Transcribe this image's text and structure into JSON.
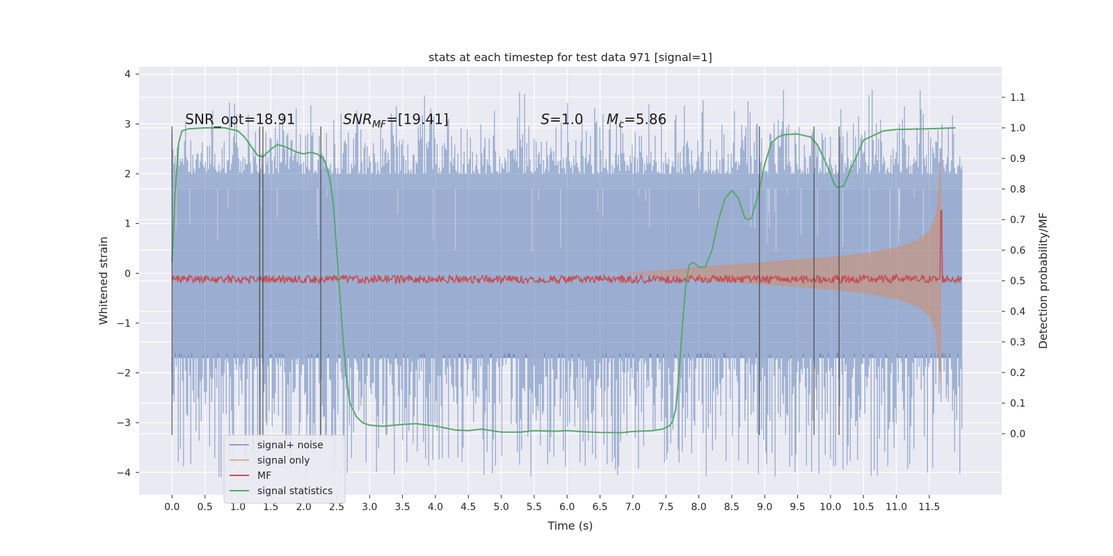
{
  "chart_data": {
    "type": "line",
    "title": "stats at each timestep for test data 971 [signal=1]",
    "xlabel": "Time (s)",
    "ylabel": "Whitened strain",
    "ylabel_right": "Detection probability/MF",
    "xlim": [
      -0.5,
      12.6
    ],
    "ylim": [
      -4.45,
      4.15
    ],
    "ylim_right": [
      -0.2,
      1.2
    ],
    "x_ticks": [
      0.0,
      0.5,
      1.0,
      1.5,
      2.0,
      2.5,
      3.0,
      3.5,
      4.0,
      4.5,
      5.0,
      5.5,
      6.0,
      6.5,
      7.0,
      7.5,
      8.0,
      8.5,
      9.0,
      9.5,
      10.0,
      10.5,
      11.0,
      11.5
    ],
    "x_tick_labels": [
      "0.0",
      "0.5",
      "1.0",
      "1.5",
      "2.0",
      "2.5",
      "3.0",
      "3.5",
      "4.0",
      "4.5",
      "5.0",
      "5.5",
      "6.0",
      "6.5",
      "7.0",
      "7.5",
      "8.0",
      "8.5",
      "9.0",
      "9.5",
      "10.0",
      "10.5",
      "11.0",
      "11.5"
    ],
    "y_ticks": [
      -4,
      -3,
      -2,
      -1,
      0,
      1,
      2,
      3,
      4
    ],
    "y_tick_labels": [
      "−4",
      "−3",
      "−2",
      "−1",
      "0",
      "1",
      "2",
      "3",
      "4"
    ],
    "y_right_ticks": [
      0.0,
      0.1,
      0.2,
      0.3,
      0.4,
      0.5,
      0.6,
      0.7,
      0.8,
      0.9,
      1.0,
      1.1
    ],
    "y_right_tick_labels": [
      "0.0",
      "0.1",
      "0.2",
      "0.3",
      "0.4",
      "0.5",
      "0.6",
      "0.7",
      "0.8",
      "0.9",
      "1.0",
      "1.1"
    ],
    "grid": true,
    "legend_position": "lower-left",
    "annotations": [
      {
        "x": 0.2,
        "y": 3.0,
        "parts": [
          {
            "t": "SNR_opt=18.91",
            "s": "n"
          }
        ]
      },
      {
        "x": 2.6,
        "y": 3.0,
        "parts": [
          {
            "t": "SNR",
            "s": "i"
          },
          {
            "t": "MF",
            "s": "isub"
          },
          {
            "t": "=[19.41]",
            "s": "n"
          }
        ]
      },
      {
        "x": 5.6,
        "y": 3.0,
        "parts": [
          {
            "t": "S",
            "s": "i"
          },
          {
            "t": "=1.0",
            "s": "n"
          }
        ]
      },
      {
        "x": 6.6,
        "y": 3.0,
        "parts": [
          {
            "t": "M",
            "s": "i"
          },
          {
            "t": "c",
            "s": "isub"
          },
          {
            "t": "=5.86",
            "s": "n"
          }
        ]
      }
    ],
    "vertical_lines": [
      {
        "x": 0.0,
        "ymin": -3.25,
        "ymax": 2.95
      },
      {
        "x": 1.33,
        "ymin": -3.25,
        "ymax": 2.95
      },
      {
        "x": 1.38,
        "ymin": -3.25,
        "ymax": 2.95
      },
      {
        "x": 2.26,
        "ymin": -3.25,
        "ymax": 2.95
      },
      {
        "x": 8.92,
        "ymin": -3.25,
        "ymax": 2.95
      },
      {
        "x": 9.75,
        "ymin": -3.25,
        "ymax": 2.95
      },
      {
        "x": 10.13,
        "ymin": -3.25,
        "ymax": 2.95
      }
    ],
    "series": [
      {
        "name": "signal+ noise",
        "color": "#4c72b0",
        "axis": "left",
        "kind": "noise",
        "x_range": [
          0.0,
          12.0
        ],
        "core_amplitude": 1.7,
        "peak_range": [
          2.0,
          3.8
        ],
        "trough_range": [
          -4.1,
          -1.6
        ]
      },
      {
        "name": "signal only",
        "color": "#dd8452",
        "axis": "left",
        "kind": "chirp",
        "x": [
          6.8,
          7.5,
          8.0,
          8.5,
          9.0,
          9.5,
          10.0,
          10.5,
          11.0,
          11.3,
          11.5,
          11.6,
          11.65,
          11.68
        ],
        "amplitude": [
          0.0,
          0.07,
          0.13,
          0.18,
          0.23,
          0.28,
          0.33,
          0.4,
          0.52,
          0.66,
          0.85,
          1.2,
          1.9,
          2.5
        ]
      },
      {
        "name": "MF",
        "color": "#c44e52",
        "axis": "right",
        "kind": "line",
        "baseline": 0.505,
        "x_range": [
          0.0,
          12.0
        ],
        "spikes": [
          {
            "x": 11.68,
            "y": 0.73
          },
          {
            "x": 11.0,
            "y": 0.52
          }
        ]
      },
      {
        "name": "signal statistics",
        "color": "#55a868",
        "axis": "right",
        "kind": "line",
        "x": [
          0.0,
          0.05,
          0.1,
          0.15,
          0.25,
          0.5,
          0.8,
          1.0,
          1.1,
          1.2,
          1.3,
          1.38,
          1.5,
          1.6,
          1.7,
          1.8,
          1.9,
          2.0,
          2.1,
          2.2,
          2.3,
          2.35,
          2.4,
          2.45,
          2.5,
          2.55,
          2.6,
          2.65,
          2.7,
          2.8,
          2.9,
          3.0,
          3.2,
          3.5,
          3.7,
          4.0,
          4.3,
          4.5,
          4.7,
          5.0,
          5.3,
          5.5,
          5.8,
          6.0,
          6.3,
          6.5,
          6.8,
          7.0,
          7.3,
          7.45,
          7.55,
          7.6,
          7.65,
          7.7,
          7.75,
          7.8,
          7.85,
          7.9,
          7.95,
          8.0,
          8.1,
          8.2,
          8.3,
          8.4,
          8.5,
          8.6,
          8.7,
          8.75,
          8.8,
          8.9,
          9.0,
          9.1,
          9.2,
          9.3,
          9.5,
          9.7,
          9.8,
          9.9,
          10.0,
          10.05,
          10.1,
          10.2,
          10.3,
          10.5,
          10.8,
          11.0,
          11.5,
          11.9
        ],
        "y": [
          0.56,
          0.8,
          0.95,
          0.99,
          0.997,
          1.0,
          1.0,
          0.99,
          0.97,
          0.94,
          0.91,
          0.905,
          0.93,
          0.945,
          0.94,
          0.93,
          0.92,
          0.915,
          0.92,
          0.915,
          0.9,
          0.87,
          0.83,
          0.75,
          0.6,
          0.45,
          0.3,
          0.18,
          0.1,
          0.055,
          0.035,
          0.028,
          0.024,
          0.03,
          0.033,
          0.025,
          0.012,
          0.01,
          0.015,
          0.005,
          0.005,
          0.01,
          0.008,
          0.01,
          0.006,
          0.004,
          0.003,
          0.007,
          0.01,
          0.015,
          0.025,
          0.04,
          0.08,
          0.2,
          0.35,
          0.48,
          0.55,
          0.56,
          0.555,
          0.545,
          0.545,
          0.6,
          0.7,
          0.77,
          0.795,
          0.77,
          0.705,
          0.7,
          0.705,
          0.78,
          0.88,
          0.95,
          0.97,
          0.978,
          0.98,
          0.97,
          0.945,
          0.9,
          0.85,
          0.82,
          0.805,
          0.81,
          0.86,
          0.96,
          0.99,
          0.995,
          0.997,
          1.0
        ]
      }
    ]
  }
}
